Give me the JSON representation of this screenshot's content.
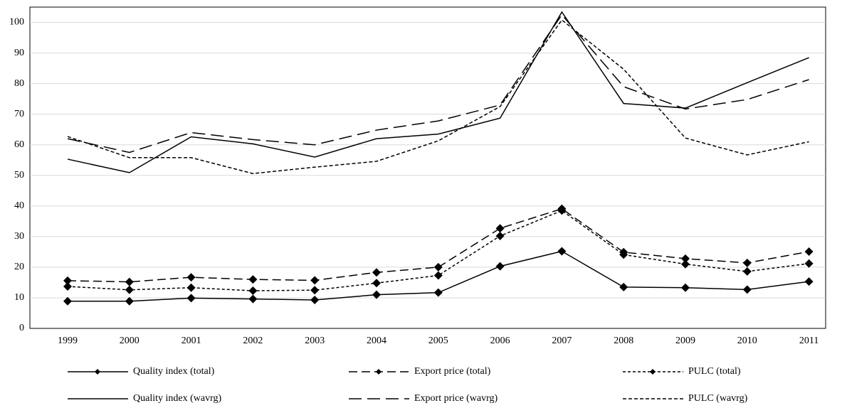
{
  "chart_data": {
    "type": "line",
    "categories": [
      "1999",
      "2000",
      "2001",
      "2002",
      "2003",
      "2004",
      "2005",
      "2006",
      "2007",
      "2008",
      "2009",
      "2010",
      "2011"
    ],
    "ylim": [
      0,
      105
    ],
    "yticks": [
      0,
      10,
      20,
      30,
      40,
      50,
      60,
      70,
      80,
      90,
      100
    ],
    "grid": true,
    "legend": "bottom",
    "series": [
      {
        "name": "Quality index (total)",
        "color": "#000000",
        "style": "solid",
        "marker": "diamond",
        "values": [
          8.9,
          8.9,
          9.9,
          9.6,
          9.3,
          11.0,
          11.7,
          20.3,
          25.2,
          13.5,
          13.3,
          12.7,
          15.3
        ]
      },
      {
        "name": "Export price (total)",
        "color": "#000000",
        "style": "dashed",
        "marker": "diamond",
        "values": [
          15.6,
          15.2,
          16.7,
          16.0,
          15.7,
          18.3,
          20.0,
          32.7,
          39.1,
          24.9,
          22.8,
          21.4,
          25.1
        ]
      },
      {
        "name": "PULC (total)",
        "color": "#000000",
        "style": "dotted",
        "marker": "diamond",
        "values": [
          13.7,
          12.6,
          13.3,
          12.3,
          12.5,
          14.8,
          17.3,
          30.2,
          38.5,
          24.1,
          21.0,
          18.6,
          21.2
        ]
      },
      {
        "name": "Quality index (wavrg)",
        "color": "#000000",
        "style": "solid",
        "marker": "none",
        "values": [
          55.3,
          50.9,
          62.6,
          60.3,
          56.0,
          62.0,
          63.5,
          68.7,
          103.4,
          73.5,
          72.0,
          80.3,
          88.5
        ]
      },
      {
        "name": "Export price (wavrg)",
        "color": "#000000",
        "style": "longdash",
        "marker": "none",
        "values": [
          62.0,
          57.5,
          64.0,
          61.7,
          60.0,
          64.8,
          67.8,
          73.0,
          102.5,
          79.0,
          71.7,
          74.8,
          81.3
        ]
      },
      {
        "name": "PULC (wavrg)",
        "color": "#000000",
        "style": "shortdash",
        "marker": "none",
        "values": [
          62.7,
          55.8,
          55.8,
          50.6,
          52.7,
          54.6,
          61.3,
          72.5,
          100.8,
          84.7,
          62.2,
          56.7,
          61.0
        ]
      }
    ]
  }
}
